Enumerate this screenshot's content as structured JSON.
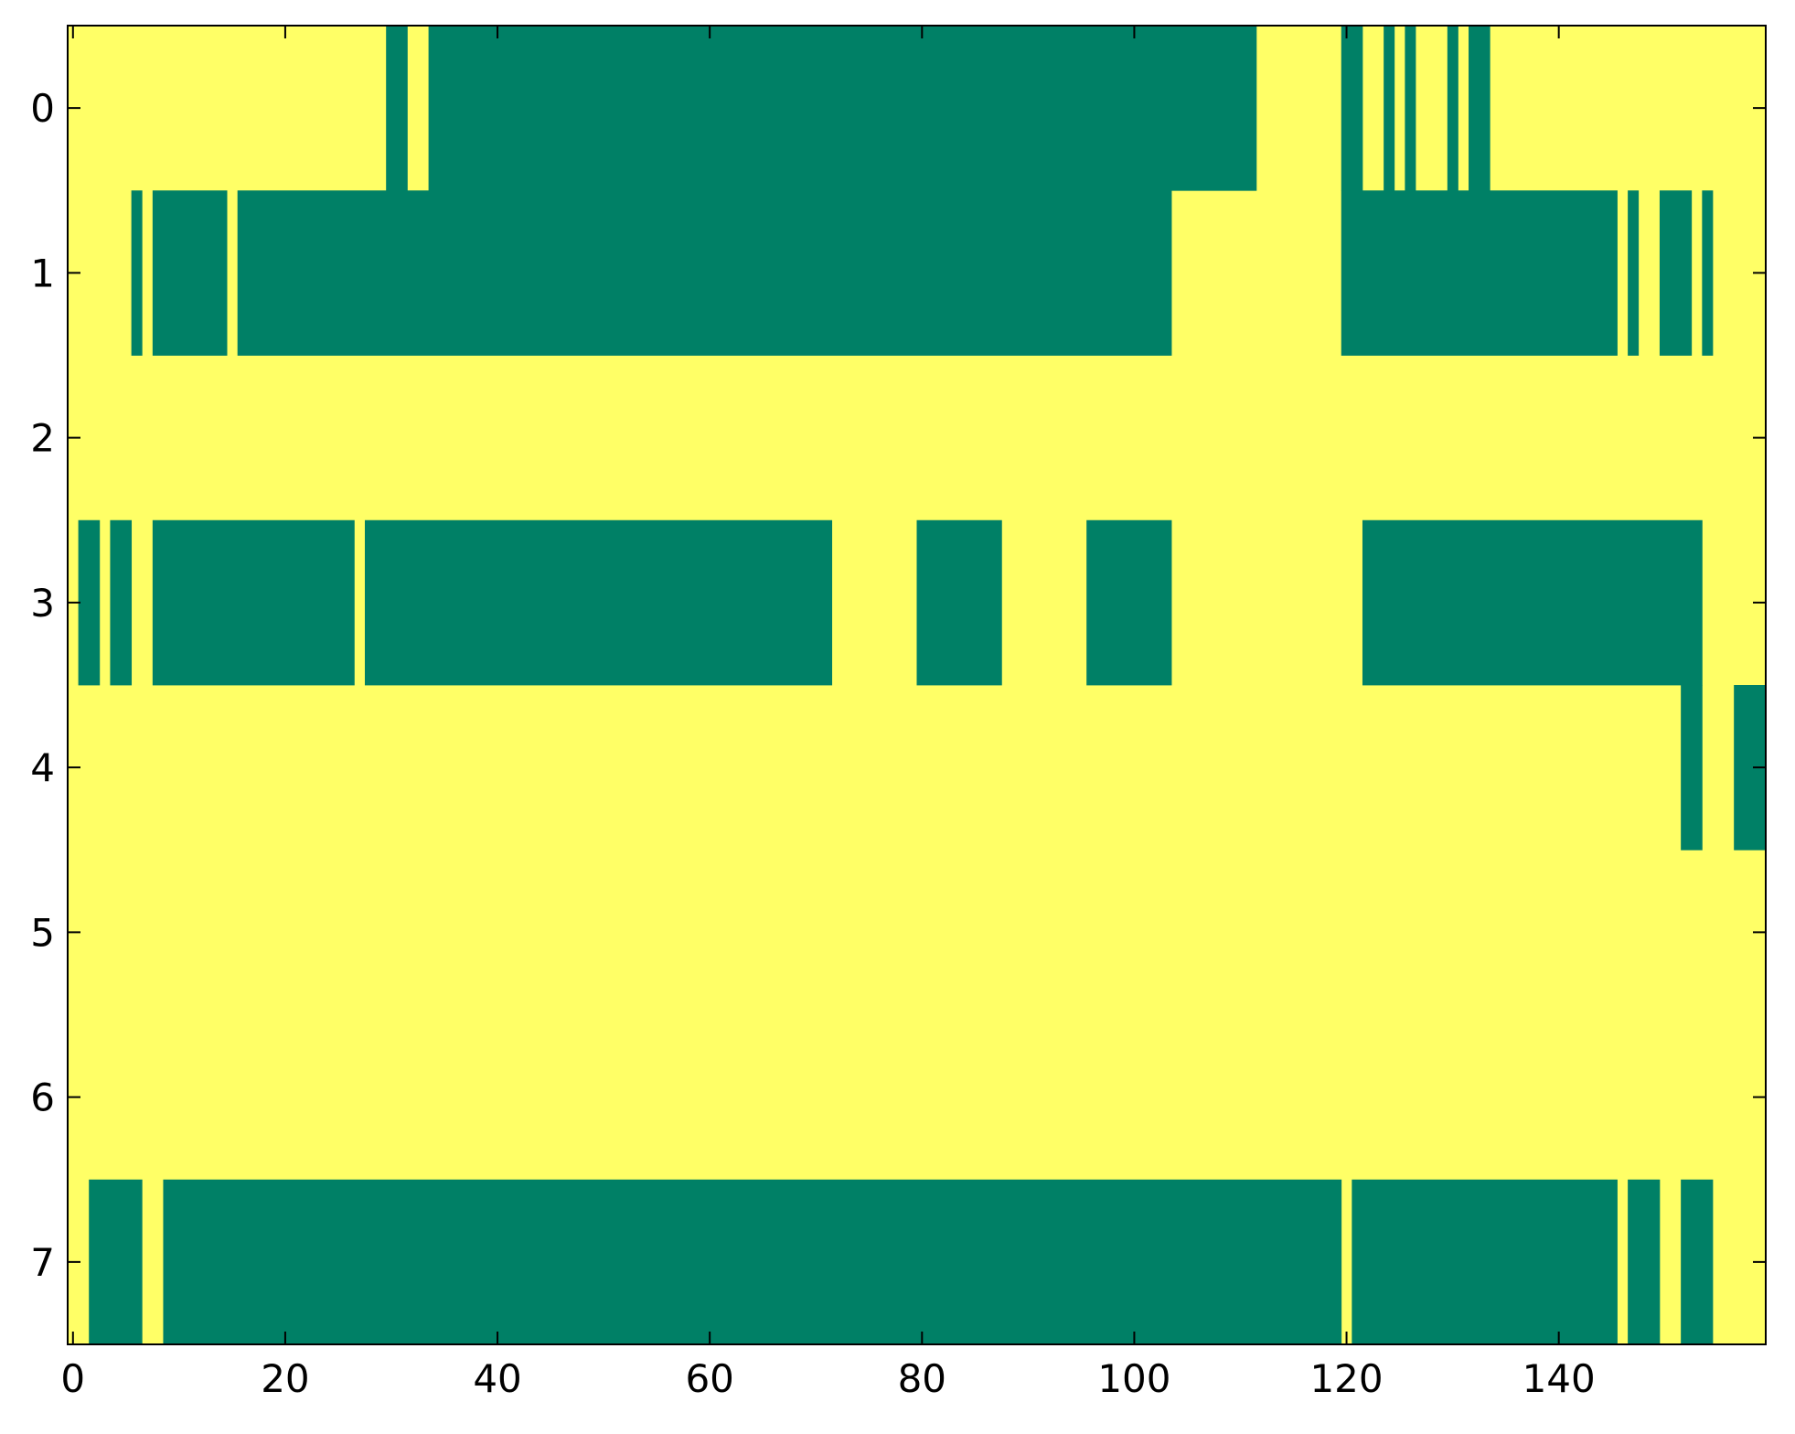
{
  "chart_data": {
    "type": "heatmap",
    "title": "",
    "xlabel": "",
    "ylabel": "",
    "xlim": [
      -0.5,
      159.5
    ],
    "ylim": [
      -0.5,
      7.5
    ],
    "y_inverted": true,
    "grid": false,
    "legend": "none",
    "colormap": "summer",
    "cell_values": [
      0,
      1
    ],
    "colors": {
      "low": "#008066",
      "high": "#ffff66",
      "axis": "#000000",
      "background": "#ffffff"
    },
    "x_ticks": [
      {
        "value": 0,
        "label": "0"
      },
      {
        "value": 20,
        "label": "20"
      },
      {
        "value": 40,
        "label": "40"
      },
      {
        "value": 60,
        "label": "60"
      },
      {
        "value": 80,
        "label": "80"
      },
      {
        "value": 100,
        "label": "100"
      },
      {
        "value": 120,
        "label": "120"
      },
      {
        "value": 140,
        "label": "140"
      }
    ],
    "y_ticks": [
      {
        "value": 0,
        "label": "0"
      },
      {
        "value": 1,
        "label": "1"
      },
      {
        "value": 2,
        "label": "2"
      },
      {
        "value": 3,
        "label": "3"
      },
      {
        "value": 4,
        "label": "4"
      },
      {
        "value": 5,
        "label": "5"
      },
      {
        "value": 6,
        "label": "6"
      },
      {
        "value": 7,
        "label": "7"
      }
    ],
    "rows": [
      {
        "row": 0,
        "low_runs": [
          [
            30,
            31
          ],
          [
            34,
            111
          ],
          [
            120,
            121
          ],
          [
            124,
            124
          ],
          [
            126,
            126
          ],
          [
            130,
            130
          ],
          [
            132,
            133
          ]
        ]
      },
      {
        "row": 1,
        "low_runs": [
          [
            6,
            6
          ],
          [
            8,
            14
          ],
          [
            16,
            103
          ],
          [
            120,
            145
          ],
          [
            147,
            147
          ],
          [
            150,
            152
          ],
          [
            154,
            154
          ]
        ]
      },
      {
        "row": 2,
        "low_runs": []
      },
      {
        "row": 3,
        "low_runs": [
          [
            1,
            2
          ],
          [
            4,
            5
          ],
          [
            8,
            26
          ],
          [
            28,
            71
          ],
          [
            80,
            87
          ],
          [
            96,
            103
          ],
          [
            122,
            153
          ]
        ]
      },
      {
        "row": 4,
        "low_runs": [
          [
            152,
            153
          ],
          [
            157,
            159
          ]
        ]
      },
      {
        "row": 5,
        "low_runs": []
      },
      {
        "row": 6,
        "low_runs": []
      },
      {
        "row": 7,
        "low_runs": [
          [
            2,
            6
          ],
          [
            9,
            119
          ],
          [
            121,
            145
          ],
          [
            147,
            149
          ],
          [
            152,
            154
          ]
        ]
      }
    ]
  }
}
